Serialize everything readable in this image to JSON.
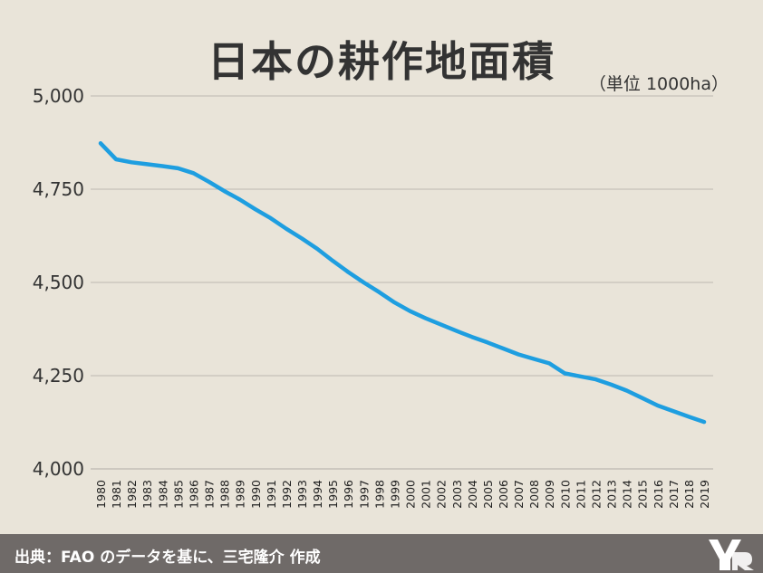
{
  "chart_data": {
    "type": "line",
    "title": "日本の耕作地面積",
    "unit_label": "（単位 1000ha）",
    "ylim": [
      4000,
      5000
    ],
    "yticks": [
      4000,
      4250,
      4500,
      4750,
      5000
    ],
    "ytick_labels": [
      "4,000",
      "4,250",
      "4,500",
      "4,750",
      "5,000"
    ],
    "grid": true,
    "x": [
      "1980",
      "1981",
      "1982",
      "1983",
      "1984",
      "1985",
      "1986",
      "1987",
      "1988",
      "1989",
      "1990",
      "1991",
      "1992",
      "1993",
      "1994",
      "1995",
      "1996",
      "1997",
      "1998",
      "1999",
      "2000",
      "2001",
      "2002",
      "2003",
      "2004",
      "2005",
      "2006",
      "2007",
      "2008",
      "2009",
      "2010",
      "2011",
      "2012",
      "2013",
      "2014",
      "2015",
      "2016",
      "2017",
      "2018",
      "2019"
    ],
    "series": [
      {
        "color": "#1e9ee0",
        "values": [
          4873,
          4830,
          4822,
          4817,
          4812,
          4806,
          4793,
          4770,
          4745,
          4722,
          4696,
          4672,
          4644,
          4618,
          4590,
          4558,
          4528,
          4500,
          4474,
          4446,
          4423,
          4404,
          4387,
          4370,
          4354,
          4339,
          4323,
          4307,
          4295,
          4283,
          4256,
          4248,
          4240,
          4226,
          4210,
          4190,
          4170,
          4155,
          4140,
          4126
        ]
      }
    ]
  },
  "footer": {
    "source": "出典：FAO のデータを基に、三宅隆介 作成"
  },
  "colors": {
    "background": "#e9e4d9",
    "footer_bg": "#6f6a68",
    "line": "#1e9ee0",
    "grid": "#bdb8b1"
  }
}
